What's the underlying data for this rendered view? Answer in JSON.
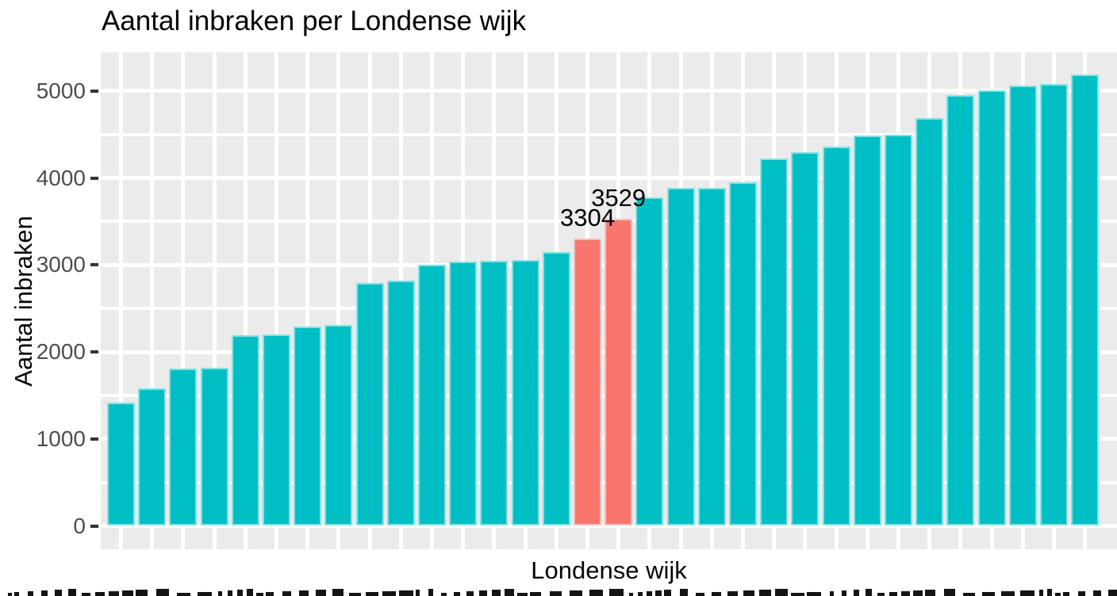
{
  "title": "Aantal inbraken per Londense wijk",
  "y_axis": {
    "label": "Aantal inbraken",
    "ticks": [
      {
        "label": "0",
        "value": 0
      },
      {
        "label": "1000",
        "value": 1000
      },
      {
        "label": "2000",
        "value": 2000
      },
      {
        "label": "3000",
        "value": 3000
      },
      {
        "label": "4000",
        "value": 4000
      },
      {
        "label": "5000",
        "value": 5000
      }
    ]
  },
  "x_axis": {
    "label": "Londense wijk",
    "tick_labels_cut_off": true
  },
  "chart_data": {
    "type": "bar",
    "title": "Aantal inbraken per Londense wijk",
    "xlabel": "Londense wijk",
    "ylabel": "Aantal inbraken",
    "ylim": [
      0,
      5450
    ],
    "grid": "on",
    "legend": "none",
    "categories_visible": false,
    "values": [
      1420,
      1580,
      1810,
      1820,
      2190,
      2200,
      2290,
      2310,
      2790,
      2820,
      3000,
      3040,
      3050,
      3060,
      3150,
      3304,
      3529,
      3780,
      3890,
      3890,
      3950,
      4220,
      4300,
      4360,
      4490,
      4500,
      4690,
      4950,
      5010,
      5060,
      5080,
      5190
    ],
    "highlighted_indices": [
      15,
      16
    ],
    "annotations": [
      {
        "text": "3304",
        "bar_index": 15
      },
      {
        "text": "3529",
        "bar_index": 16
      }
    ]
  },
  "colors": {
    "bar_default": "#00BFC4",
    "bar_highlight": "#F8766D",
    "panel_background": "#EBEBEB",
    "gridline": "#FFFFFF",
    "tick_text": "#4D4D4D",
    "title_text": "#000000"
  }
}
